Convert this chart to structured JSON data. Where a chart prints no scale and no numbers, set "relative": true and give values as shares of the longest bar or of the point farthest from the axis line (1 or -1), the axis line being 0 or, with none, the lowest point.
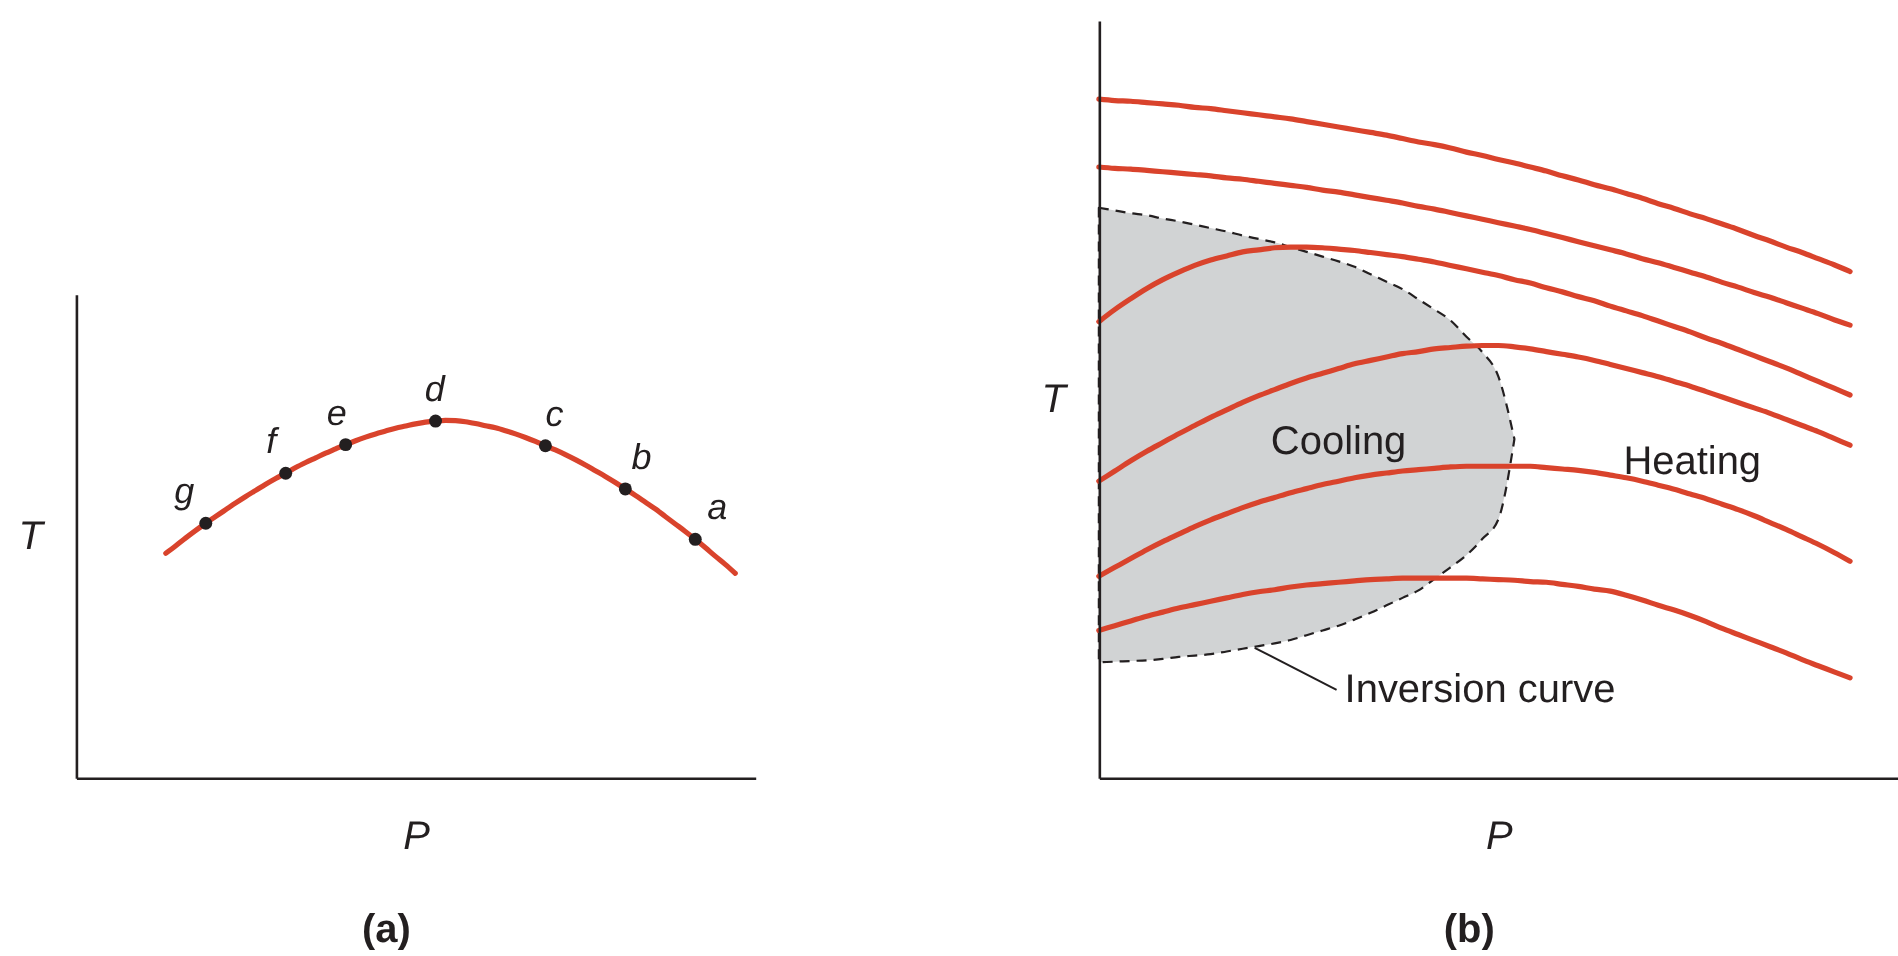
{
  "chart_data": [
    {
      "type": "line",
      "title": "(a)",
      "xlabel": "P",
      "ylabel": "T",
      "relative": true,
      "tick_labels": false,
      "categories": [
        null,
        null,
        null,
        null,
        null,
        null,
        null,
        null,
        null,
        null,
        null,
        null,
        null,
        null,
        null,
        null,
        null,
        null,
        null,
        null,
        null,
        null,
        null,
        null,
        null,
        null,
        null,
        null,
        null,
        null,
        null,
        null,
        null,
        null,
        null,
        null,
        null,
        null,
        null,
        null,
        null,
        null,
        null,
        null,
        null,
        null,
        null,
        null,
        null,
        null,
        null,
        null,
        null,
        null,
        null,
        null,
        null,
        null,
        null,
        null,
        null,
        null,
        null,
        null,
        null,
        null,
        null,
        null,
        null
      ],
      "series": [
        {
          "color": "#d9432c",
          "values": [
            null,
            null,
            null,
            null,
            null,
            null,
            null,
            null,
            null,
            0.628,
            0.649,
            0.671,
            0.692,
            0.712,
            0.731,
            0.75,
            0.769,
            0.787,
            0.804,
            0.821,
            0.837,
            0.852,
            0.868,
            0.882,
            0.895,
            0.908,
            0.92,
            0.932,
            0.943,
            0.953,
            0.962,
            0.97,
            0.978,
            0.984,
            0.99,
            0.995,
            0.998,
            1.0,
            0.999,
            0.996,
            0.991,
            0.985,
            0.979,
            0.971,
            0.962,
            0.952,
            0.941,
            0.929,
            0.917,
            0.904,
            0.89,
            0.875,
            0.859,
            0.843,
            0.826,
            0.808,
            0.79,
            0.771,
            0.752,
            0.731,
            0.71,
            0.689,
            0.667,
            0.644,
            0.62,
            0.597,
            0.572,
            null,
            null
          ]
        },
        {
          "name": "g",
          "color": "#231f20",
          "marker": "circle",
          "values": [
            null,
            null,
            null,
            null,
            null,
            null,
            null,
            null,
            null,
            null,
            null,
            null,
            null,
            0.712,
            null,
            null,
            null,
            null,
            null,
            null,
            null,
            null,
            null,
            null,
            null,
            null,
            null,
            null,
            null,
            null,
            null,
            null,
            null,
            null,
            null,
            null,
            null,
            null,
            null,
            null,
            null,
            null,
            null,
            null,
            null,
            null,
            null,
            null,
            null,
            null,
            null,
            null,
            null,
            null,
            null,
            null,
            null,
            null,
            null,
            null,
            null,
            null,
            null,
            null,
            null,
            null,
            null,
            null,
            null
          ]
        },
        {
          "name": "f",
          "color": "#231f20",
          "marker": "circle",
          "values": [
            null,
            null,
            null,
            null,
            null,
            null,
            null,
            null,
            null,
            null,
            null,
            null,
            null,
            null,
            null,
            null,
            null,
            null,
            null,
            null,
            null,
            0.852,
            null,
            null,
            null,
            null,
            null,
            null,
            null,
            null,
            null,
            null,
            null,
            null,
            null,
            null,
            null,
            null,
            null,
            null,
            null,
            null,
            null,
            null,
            null,
            null,
            null,
            null,
            null,
            null,
            null,
            null,
            null,
            null,
            null,
            null,
            null,
            null,
            null,
            null,
            null,
            null,
            null,
            null,
            null,
            null,
            null,
            null,
            null
          ]
        },
        {
          "name": "e",
          "color": "#231f20",
          "marker": "circle",
          "values": [
            null,
            null,
            null,
            null,
            null,
            null,
            null,
            null,
            null,
            null,
            null,
            null,
            null,
            null,
            null,
            null,
            null,
            null,
            null,
            null,
            null,
            null,
            null,
            null,
            null,
            null,
            null,
            0.932,
            null,
            null,
            null,
            null,
            null,
            null,
            null,
            null,
            null,
            null,
            null,
            null,
            null,
            null,
            null,
            null,
            null,
            null,
            null,
            null,
            null,
            null,
            null,
            null,
            null,
            null,
            null,
            null,
            null,
            null,
            null,
            null,
            null,
            null,
            null,
            null,
            null,
            null,
            null,
            null,
            null
          ]
        },
        {
          "name": "d",
          "color": "#231f20",
          "marker": "circle",
          "values": [
            null,
            null,
            null,
            null,
            null,
            null,
            null,
            null,
            null,
            null,
            null,
            null,
            null,
            null,
            null,
            null,
            null,
            null,
            null,
            null,
            null,
            null,
            null,
            null,
            null,
            null,
            null,
            null,
            null,
            null,
            null,
            null,
            null,
            null,
            null,
            null,
            0.998,
            null,
            null,
            null,
            null,
            null,
            null,
            null,
            null,
            null,
            null,
            null,
            null,
            null,
            null,
            null,
            null,
            null,
            null,
            null,
            null,
            null,
            null,
            null,
            null,
            null,
            null,
            null,
            null,
            null,
            null,
            null,
            null
          ]
        },
        {
          "name": "c",
          "color": "#231f20",
          "marker": "circle",
          "values": [
            null,
            null,
            null,
            null,
            null,
            null,
            null,
            null,
            null,
            null,
            null,
            null,
            null,
            null,
            null,
            null,
            null,
            null,
            null,
            null,
            null,
            null,
            null,
            null,
            null,
            null,
            null,
            null,
            null,
            null,
            null,
            null,
            null,
            null,
            null,
            null,
            null,
            null,
            null,
            null,
            null,
            null,
            null,
            null,
            null,
            null,
            null,
            0.929,
            null,
            null,
            null,
            null,
            null,
            null,
            null,
            null,
            null,
            null,
            null,
            null,
            null,
            null,
            null,
            null,
            null,
            null,
            null,
            null,
            null
          ]
        },
        {
          "name": "b",
          "color": "#231f20",
          "marker": "circle",
          "values": [
            null,
            null,
            null,
            null,
            null,
            null,
            null,
            null,
            null,
            null,
            null,
            null,
            null,
            null,
            null,
            null,
            null,
            null,
            null,
            null,
            null,
            null,
            null,
            null,
            null,
            null,
            null,
            null,
            null,
            null,
            null,
            null,
            null,
            null,
            null,
            null,
            null,
            null,
            null,
            null,
            null,
            null,
            null,
            null,
            null,
            null,
            null,
            null,
            null,
            null,
            null,
            null,
            null,
            null,
            null,
            0.808,
            null,
            null,
            null,
            null,
            null,
            null,
            null,
            null,
            null,
            null,
            null,
            null,
            null
          ]
        },
        {
          "name": "a",
          "color": "#231f20",
          "marker": "circle",
          "values": [
            null,
            null,
            null,
            null,
            null,
            null,
            null,
            null,
            null,
            null,
            null,
            null,
            null,
            null,
            null,
            null,
            null,
            null,
            null,
            null,
            null,
            null,
            null,
            null,
            null,
            null,
            null,
            null,
            null,
            null,
            null,
            null,
            null,
            null,
            null,
            null,
            null,
            null,
            null,
            null,
            null,
            null,
            null,
            null,
            null,
            null,
            null,
            null,
            null,
            null,
            null,
            null,
            null,
            null,
            null,
            null,
            null,
            null,
            null,
            null,
            null,
            null,
            0.667,
            null,
            null,
            null,
            null,
            null,
            null
          ]
        }
      ]
    },
    {
      "type": "line",
      "title": "(b)",
      "xlabel": "P",
      "ylabel": "T",
      "relative": true,
      "tick_labels": false,
      "categories": [
        null,
        null,
        null,
        null,
        null,
        null,
        null,
        null,
        null,
        null,
        null,
        null,
        null,
        null,
        null,
        null,
        null,
        null,
        null,
        null,
        null,
        null,
        null,
        null,
        null,
        null,
        null,
        null,
        null,
        null,
        null,
        null,
        null,
        null,
        null,
        null,
        null,
        null,
        null,
        null,
        null,
        null,
        null,
        null,
        null,
        null,
        null,
        null,
        null,
        null,
        null
      ],
      "series": [
        {
          "type": "area",
          "color": "#d1d3d4",
          "line_style": "dashed",
          "values": [
            null,
            null,
            null,
            null,
            null,
            null,
            null,
            null,
            null,
            null,
            null,
            null,
            null,
            null,
            null,
            null,
            null,
            null,
            null,
            null,
            null,
            null,
            null,
            null,
            null,
            null,
            null,
            null,
            null,
            null,
            null,
            null,
            null,
            null,
            null,
            null,
            null,
            null,
            null,
            null,
            null,
            null,
            null,
            null,
            null,
            null,
            null,
            null,
            null,
            null,
            null
          ],
          "upper": [
            0.84,
            0.836,
            0.832,
            0.829,
            0.824,
            0.82,
            0.815,
            0.81,
            0.805,
            0.799,
            0.794,
            0.789,
            0.782,
            0.775,
            0.768,
            0.761,
            0.753,
            0.742,
            0.731,
            0.72,
            0.705,
            0.69,
            0.674,
            0.65,
            0.627,
            0.591,
            0.499,
            null,
            null,
            null,
            null,
            null,
            null,
            null,
            null,
            null,
            null,
            null,
            null,
            null,
            null,
            null,
            null,
            null,
            null,
            null,
            null,
            null,
            null,
            null,
            null
          ],
          "lower": [
            0.17,
            0.171,
            0.172,
            0.173,
            0.175,
            0.178,
            0.18,
            0.182,
            0.186,
            0.19,
            0.194,
            0.198,
            0.203,
            0.21,
            0.217,
            0.224,
            0.233,
            0.243,
            0.254,
            0.265,
            0.276,
            0.293,
            0.31,
            0.328,
            0.352,
            0.381,
            0.499,
            null,
            null,
            null,
            null,
            null,
            null,
            null,
            null,
            null,
            null,
            null,
            null,
            null,
            null,
            null,
            null,
            null,
            null,
            null,
            null,
            null,
            null,
            null,
            null
          ]
        },
        {
          "color": "#d9432c",
          "values": [
            1.0,
            0.998,
            0.997,
            0.995,
            0.993,
            0.991,
            0.988,
            0.986,
            0.983,
            0.98,
            0.977,
            0.974,
            0.971,
            0.967,
            0.963,
            0.959,
            0.955,
            0.951,
            0.947,
            0.942,
            0.937,
            0.933,
            0.928,
            0.922,
            0.917,
            0.911,
            0.906,
            0.9,
            0.894,
            0.887,
            0.881,
            0.874,
            0.868,
            0.861,
            0.854,
            0.846,
            0.839,
            0.831,
            0.824,
            0.816,
            0.808,
            0.799,
            0.791,
            0.782,
            0.774,
            0.765,
            0.756,
            0.746,
            null,
            null,
            null
          ]
        },
        {
          "color": "#d9432c",
          "values": [
            0.9,
            0.898,
            0.897,
            0.895,
            0.893,
            0.891,
            0.889,
            0.887,
            0.884,
            0.882,
            0.879,
            0.876,
            0.873,
            0.87,
            0.866,
            0.863,
            0.859,
            0.855,
            0.851,
            0.847,
            0.842,
            0.838,
            0.833,
            0.828,
            0.823,
            0.818,
            0.813,
            0.808,
            0.802,
            0.796,
            0.79,
            0.784,
            0.778,
            0.772,
            0.765,
            0.759,
            0.752,
            0.745,
            0.738,
            0.73,
            0.723,
            0.715,
            0.708,
            0.7,
            0.692,
            0.684,
            0.675,
            0.667,
            null,
            null,
            null
          ]
        },
        {
          "color": "#d9432c",
          "values": [
            0.672,
            0.69,
            0.706,
            0.721,
            0.734,
            0.745,
            0.755,
            0.763,
            0.769,
            0.775,
            0.778,
            0.781,
            0.782,
            0.782,
            0.781,
            0.779,
            0.777,
            0.774,
            0.771,
            0.768,
            0.764,
            0.76,
            0.755,
            0.75,
            0.745,
            0.74,
            0.734,
            0.729,
            0.722,
            0.716,
            0.709,
            0.703,
            0.695,
            0.688,
            0.681,
            0.673,
            0.665,
            0.657,
            0.648,
            0.64,
            0.631,
            0.622,
            0.613,
            0.604,
            0.594,
            0.584,
            0.574,
            0.564,
            null,
            null,
            null
          ]
        },
        {
          "color": "#d9432c",
          "values": [
            0.437,
            0.452,
            0.467,
            0.481,
            0.494,
            0.507,
            0.519,
            0.531,
            0.542,
            0.553,
            0.563,
            0.572,
            0.581,
            0.589,
            0.596,
            0.603,
            0.61,
            0.615,
            0.62,
            0.625,
            0.628,
            0.632,
            0.634,
            0.636,
            0.637,
            0.637,
            0.635,
            0.632,
            0.628,
            0.624,
            0.62,
            0.615,
            0.609,
            0.603,
            0.597,
            0.591,
            0.584,
            0.577,
            0.569,
            0.561,
            0.553,
            0.545,
            0.537,
            0.528,
            0.519,
            0.51,
            0.5,
            0.49,
            null,
            null,
            null
          ]
        },
        {
          "color": "#d9432c",
          "values": [
            0.297,
            0.31,
            0.323,
            0.336,
            0.348,
            0.359,
            0.37,
            0.38,
            0.389,
            0.398,
            0.406,
            0.413,
            0.42,
            0.426,
            0.432,
            0.437,
            0.442,
            0.446,
            0.449,
            0.452,
            0.454,
            0.456,
            0.458,
            0.459,
            0.459,
            0.459,
            0.459,
            0.459,
            0.457,
            0.455,
            0.453,
            0.45,
            0.446,
            0.442,
            0.437,
            0.431,
            0.425,
            0.418,
            0.411,
            0.403,
            0.395,
            0.386,
            0.376,
            0.366,
            0.355,
            0.344,
            0.332,
            0.319,
            null,
            null,
            null
          ]
        },
        {
          "color": "#d9432c",
          "values": [
            0.217,
            0.224,
            0.231,
            0.238,
            0.244,
            0.25,
            0.255,
            0.26,
            0.265,
            0.27,
            0.274,
            0.277,
            0.281,
            0.284,
            0.286,
            0.288,
            0.29,
            0.292,
            0.293,
            0.294,
            0.294,
            0.294,
            0.294,
            0.294,
            0.293,
            0.292,
            0.291,
            0.289,
            0.288,
            0.285,
            0.282,
            0.278,
            0.275,
            0.269,
            0.262,
            0.254,
            0.247,
            0.239,
            0.23,
            0.22,
            0.211,
            0.202,
            0.193,
            0.184,
            0.174,
            0.165,
            0.156,
            0.147,
            null,
            null,
            null
          ]
        }
      ],
      "annotations": [
        "Cooling",
        "Heating",
        "Inversion curve"
      ]
    }
  ]
}
